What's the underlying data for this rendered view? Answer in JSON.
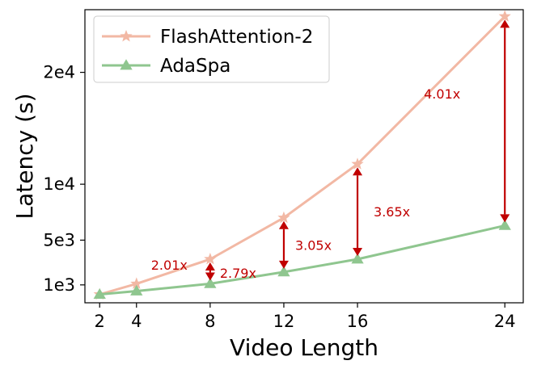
{
  "chart_data": {
    "type": "line",
    "xlabel": "Video Length",
    "ylabel": "Latency (s)",
    "x": [
      2,
      4,
      8,
      12,
      16,
      24
    ],
    "x_ticks": [
      "2",
      "4",
      "8",
      "12",
      "16",
      "24"
    ],
    "y_ticks": [
      {
        "value": 1000,
        "label": "1e3"
      },
      {
        "value": 5000,
        "label": "5e3"
      },
      {
        "value": 10000,
        "label": "1e4"
      },
      {
        "value": 20000,
        "label": "2e4"
      }
    ],
    "xlim": [
      1.2,
      25.0
    ],
    "ylim": [
      -600,
      25600
    ],
    "grid": false,
    "legend_position": "top-left",
    "series": [
      {
        "name": "FlashAttention-2",
        "color": "#f2b8a4",
        "marker": "star",
        "values": [
          150,
          1100,
          3300,
          7000,
          11800,
          25000
        ]
      },
      {
        "name": "AdaSpa",
        "color": "#8fc68f",
        "marker": "triangle",
        "values": [
          150,
          450,
          1100,
          2150,
          3300,
          6300
        ]
      }
    ],
    "annotations": [
      {
        "x": 4,
        "label": "2.01x",
        "color": "#c00000"
      },
      {
        "x": 8,
        "label": "2.79x",
        "color": "#c00000"
      },
      {
        "x": 12,
        "label": "3.05x",
        "color": "#c00000"
      },
      {
        "x": 16,
        "label": "3.65x",
        "color": "#c00000"
      },
      {
        "x": 24,
        "label": "4.01x",
        "color": "#c00000"
      }
    ]
  }
}
